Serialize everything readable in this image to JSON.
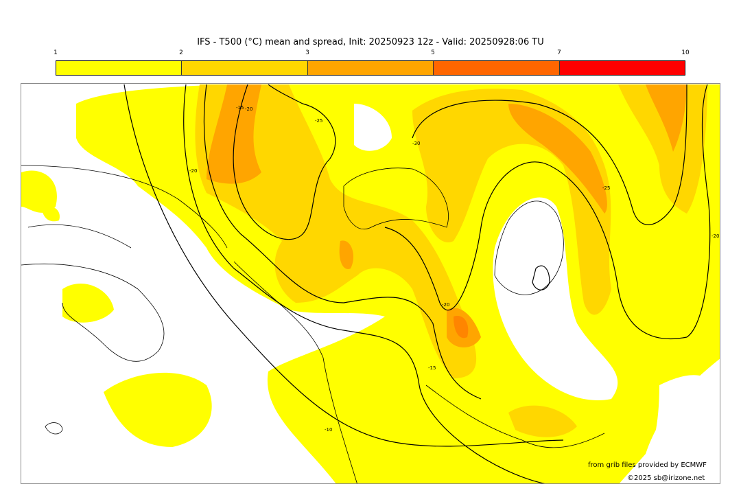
{
  "title": "IFS - T500 (°C) mean and spread, Init: 20250923 12z - Valid: 20250928:06 TU",
  "colorbar": {
    "ticks": [
      "1",
      "2",
      "3",
      "5",
      "7",
      "10"
    ],
    "colors": [
      "#ffff00",
      "#ffd700",
      "#ffa500",
      "#ff6600",
      "#ff0000"
    ]
  },
  "contour_labels": [
    "-15",
    "-20",
    "-25",
    "-30",
    "-25",
    "-20",
    "-15",
    "-10",
    "-20",
    "-20"
  ],
  "credits": {
    "source": "from grib files provided by ECMWF",
    "copyright": "©2025 sb@irizone.net"
  }
}
